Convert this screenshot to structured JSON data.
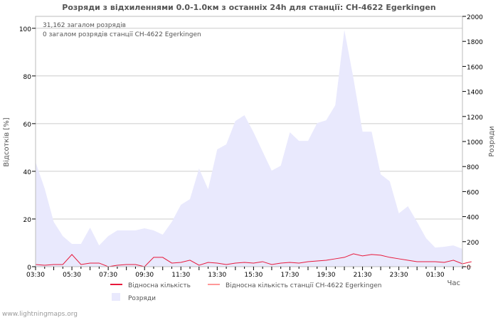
{
  "chart_data": {
    "type": "line",
    "title": "Розряди з відхиленнями 0.0-1.0км з останніх 24h для станції: CH-4622 Egerkingen",
    "ylabel": "Відсотків   [%]",
    "y2label": "Розряди",
    "xlabel": "Час",
    "ylim": [
      0,
      105
    ],
    "y2lim": [
      0,
      2000
    ],
    "yticks": [
      "0",
      "20",
      "40",
      "60",
      "80",
      "100"
    ],
    "y2ticks": [
      "0",
      "200",
      "400",
      "600",
      "800",
      "1000",
      "1200",
      "1400",
      "1600",
      "1800",
      "2000"
    ],
    "xticks": [
      "03:30",
      "05:30",
      "07:30",
      "09:30",
      "11:30",
      "13:30",
      "15:30",
      "17:30",
      "19:30",
      "21:30",
      "23:30",
      "01:30"
    ],
    "annotations": [
      "31,162 загалом розрядів",
      "0 загалом розрядів станції CH-4622 Egerkingen"
    ],
    "legend": [
      "Відносна кількість",
      "Відносна кількість станції CH-4622 Egerkingen",
      "Розряди"
    ],
    "colors": {
      "relative": "#e8193b",
      "station": "#ff9999",
      "strikes": "#e9e9fd"
    },
    "strikes": [
      835,
      625,
      358,
      244,
      182,
      182,
      312,
      170,
      244,
      290,
      290,
      290,
      307,
      290,
      256,
      358,
      494,
      540,
      784,
      619,
      937,
      977,
      1164,
      1210,
      1074,
      920,
      767,
      807,
      1074,
      1005,
      1005,
      1147,
      1170,
      1290,
      1891,
      1505,
      1079,
      1079,
      738,
      682,
      426,
      483,
      358,
      227,
      153,
      159,
      170,
      142
    ],
    "relative": [
      0.9,
      0.6,
      0.9,
      0.9,
      5.1,
      0.9,
      1.5,
      1.5,
      0,
      0.6,
      0.9,
      0.9,
      0,
      3.9,
      3.9,
      1.5,
      1.8,
      2.7,
      0.6,
      1.8,
      1.5,
      0.9,
      1.5,
      1.8,
      1.5,
      2.1,
      0.9,
      1.5,
      1.8,
      1.5,
      2.1,
      2.4,
      2.7,
      3.3,
      3.9,
      5.4,
      4.5,
      5.1,
      4.8,
      3.9,
      3.3,
      2.7,
      2.1,
      2.1,
      2.1,
      1.8,
      2.7,
      1.2,
      2.1
    ],
    "station_relative": [
      0,
      0,
      0,
      0,
      0,
      0,
      0,
      0,
      0,
      0,
      0,
      0,
      0,
      0,
      0,
      0,
      0,
      0,
      0,
      0,
      0,
      0,
      0,
      0,
      0,
      0,
      0,
      0,
      0,
      0,
      0,
      0,
      0,
      0,
      0,
      0,
      0,
      0,
      0,
      0,
      0,
      0,
      0,
      0,
      0,
      0,
      0,
      0,
      0
    ]
  },
  "footer": "www.lightningmaps.org"
}
